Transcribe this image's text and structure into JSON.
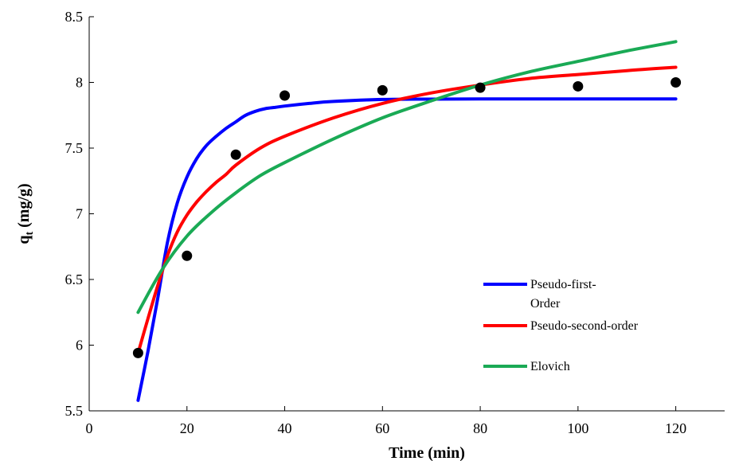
{
  "chart_data": {
    "type": "line",
    "xlabel": "Time (min)",
    "ylabel_main": "q",
    "ylabel_sub": "t",
    "ylabel_unit": " (mg/g)",
    "xlim": [
      0,
      130
    ],
    "ylim": [
      5.5,
      8.5
    ],
    "xticks": [
      0,
      20,
      40,
      60,
      80,
      100,
      120
    ],
    "yticks": [
      5.5,
      6,
      6.5,
      7,
      7.5,
      8,
      8.5
    ],
    "ytick_labels": [
      "5.5",
      "6",
      "6.5",
      "7",
      "7.5",
      "8",
      "8.5"
    ],
    "grid": false,
    "legend_position": "lower-right",
    "experimental": {
      "x": [
        10,
        20,
        30,
        40,
        60,
        80,
        100,
        120
      ],
      "y": [
        5.94,
        6.68,
        7.45,
        7.9,
        7.94,
        7.96,
        7.97,
        8.0
      ]
    },
    "series": [
      {
        "name": "Pseudo-first-Order",
        "legend_lines": [
          "Pseudo-first-",
          "Order"
        ],
        "color": "#0000FF",
        "x": [
          10,
          12,
          14,
          16,
          18,
          20,
          22,
          24,
          26,
          28,
          30,
          32,
          34,
          36,
          38,
          40,
          45,
          50,
          60,
          70,
          80,
          90,
          100,
          110,
          120
        ],
        "y": [
          5.58,
          5.95,
          6.35,
          6.78,
          7.08,
          7.28,
          7.42,
          7.52,
          7.59,
          7.65,
          7.7,
          7.75,
          7.78,
          7.8,
          7.81,
          7.82,
          7.84,
          7.855,
          7.87,
          7.873,
          7.874,
          7.874,
          7.874,
          7.874,
          7.874
        ]
      },
      {
        "name": "Pseudo-second-order",
        "legend_lines": [
          "Pseudo-second-order"
        ],
        "color": "#FF0000",
        "x": [
          10,
          12,
          14,
          16,
          18,
          20,
          22,
          24,
          26,
          28,
          30,
          35,
          40,
          50,
          60,
          70,
          80,
          90,
          100,
          110,
          120
        ],
        "y": [
          5.94,
          6.2,
          6.45,
          6.68,
          6.86,
          6.99,
          7.09,
          7.17,
          7.24,
          7.3,
          7.37,
          7.5,
          7.59,
          7.73,
          7.84,
          7.92,
          7.98,
          8.03,
          8.06,
          8.09,
          8.115
        ]
      },
      {
        "name": "Elovich",
        "legend_lines": [
          "Elovich"
        ],
        "color": "#1AAA55",
        "x": [
          10,
          15,
          20,
          25,
          30,
          35,
          40,
          50,
          60,
          70,
          80,
          90,
          100,
          110,
          120
        ],
        "y": [
          6.25,
          6.58,
          6.83,
          7.01,
          7.16,
          7.29,
          7.39,
          7.57,
          7.73,
          7.86,
          7.98,
          8.08,
          8.16,
          8.24,
          8.31
        ]
      }
    ]
  }
}
